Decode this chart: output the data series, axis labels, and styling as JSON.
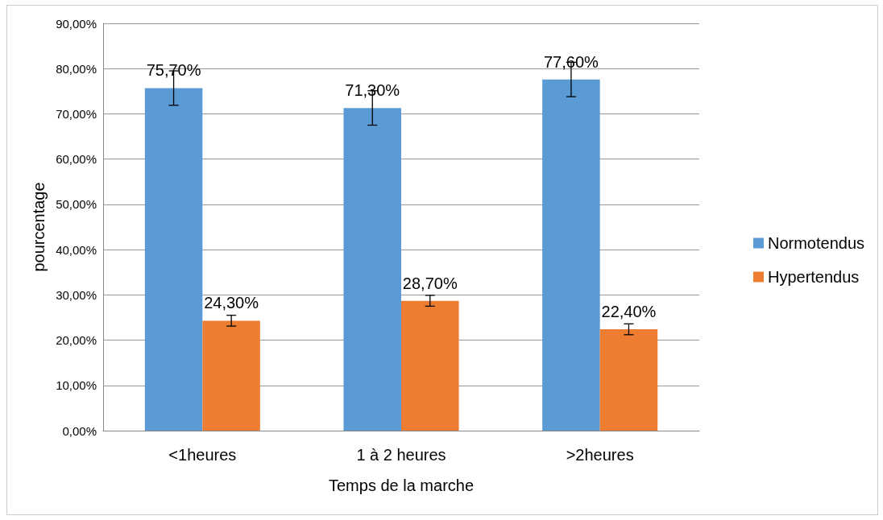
{
  "chart_data": {
    "type": "bar",
    "xlabel": "Temps de la marche",
    "ylabel": "pourcentage",
    "categories": [
      "<1heures",
      "1 à 2 heures",
      ">2heures"
    ],
    "series": [
      {
        "name": "Normotendus",
        "color": "#5b9bd5",
        "values": [
          75.7,
          71.3,
          77.6
        ],
        "errors": [
          3.8,
          3.8,
          3.8
        ],
        "value_labels": [
          "75,70%",
          "71,30%",
          "77,60%"
        ]
      },
      {
        "name": "Hypertendus",
        "color": "#ed7d31",
        "values": [
          24.3,
          28.7,
          22.4
        ],
        "errors": [
          1.2,
          1.2,
          1.2
        ],
        "value_labels": [
          "24,30%",
          "28,70%",
          "22,40%"
        ]
      }
    ],
    "ylim": [
      0,
      90
    ],
    "yticks": [
      {
        "value": 0,
        "label": "0,00%"
      },
      {
        "value": 10,
        "label": "10,00%"
      },
      {
        "value": 20,
        "label": "20,00%"
      },
      {
        "value": 30,
        "label": "30,00%"
      },
      {
        "value": 40,
        "label": "40,00%"
      },
      {
        "value": 50,
        "label": "50,00%"
      },
      {
        "value": 60,
        "label": "60,00%"
      },
      {
        "value": 70,
        "label": "70,00%"
      },
      {
        "value": 80,
        "label": "80,00%"
      },
      {
        "value": 90,
        "label": "90,00%"
      }
    ],
    "grid": "y",
    "legend": "right"
  }
}
